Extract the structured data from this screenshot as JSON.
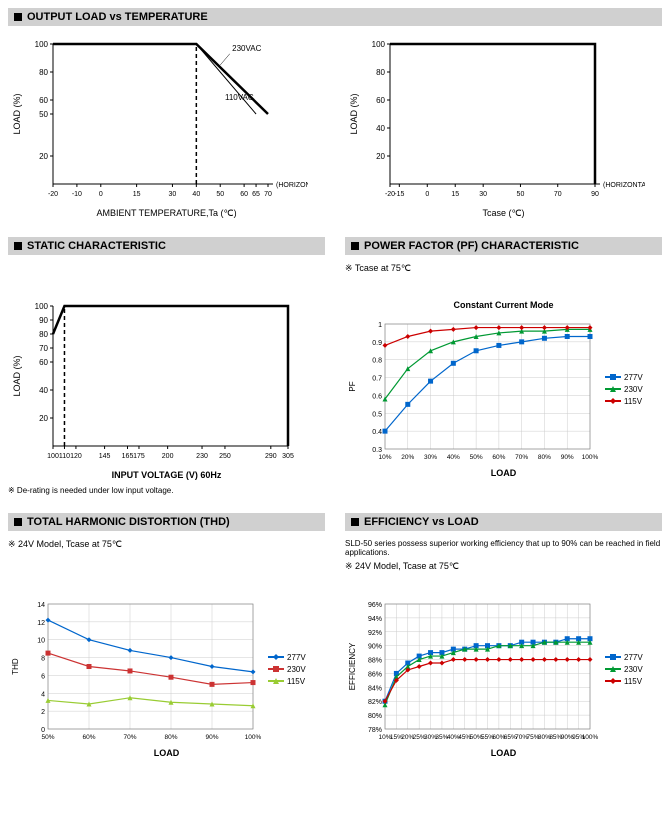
{
  "sections": {
    "output_temp": "OUTPUT LOAD vs TEMPERATURE",
    "static": "STATIC CHARACTERISTIC",
    "pf": "POWER FACTOR (PF) CHARACTERISTIC",
    "thd": "TOTAL HARMONIC DISTORTION (THD)",
    "eff": "EFFICIENCY vs LOAD"
  },
  "chart1": {
    "ylabel": "LOAD (%)",
    "xlabel": "AMBIENT TEMPERATURE,Ta (℃)",
    "xticks": [
      "-20",
      "-10",
      "0",
      "15",
      "30",
      "40",
      "50",
      "60",
      "65",
      "70"
    ],
    "yticks": [
      "20",
      "50",
      "60",
      "80",
      "100"
    ],
    "horizontal": "(HORIZONTAL)",
    "labels": [
      "230VAC",
      "110VAC"
    ],
    "colors": {
      "line": "#000",
      "grid": "#e0e0e0"
    },
    "line230": [
      [
        -20,
        100
      ],
      [
        40,
        100
      ],
      [
        70,
        50
      ]
    ],
    "line110": [
      [
        -20,
        100
      ],
      [
        40,
        100
      ],
      [
        65,
        50
      ]
    ],
    "dash": [
      [
        40,
        0
      ],
      [
        40,
        100
      ]
    ]
  },
  "chart2": {
    "ylabel": "LOAD (%)",
    "xlabel": "Tcase (℃)",
    "xticks": [
      "-20",
      "-15",
      "0",
      "15",
      "30",
      "50",
      "70",
      "90"
    ],
    "yticks": [
      "20",
      "40",
      "60",
      "80",
      "100"
    ],
    "horizontal": "(HORIZONTAL)",
    "line": [
      [
        -20,
        100
      ],
      [
        90,
        100
      ],
      [
        90,
        0
      ]
    ]
  },
  "chart3": {
    "ylabel": "LOAD (%)",
    "xlabel": "INPUT VOLTAGE (V) 60Hz",
    "note": "※ De-rating is needed under low input voltage.",
    "xticks": [
      "100",
      "110",
      "120",
      "145",
      "165",
      "175",
      "200",
      "230",
      "250",
      "290",
      "305"
    ],
    "yticks": [
      "20",
      "40",
      "60",
      "70",
      "80",
      "90",
      "100"
    ],
    "line": [
      [
        100,
        80
      ],
      [
        110,
        100
      ],
      [
        305,
        100
      ]
    ],
    "dash": [
      [
        110,
        0
      ],
      [
        110,
        100
      ]
    ]
  },
  "chart4": {
    "subtitle": "※ Tcase at 75℃",
    "title": "Constant Current Mode",
    "ylabel": "PF",
    "xlabel": "LOAD",
    "xticks": [
      "10%",
      "20%",
      "30%",
      "40%",
      "50%",
      "60%",
      "70%",
      "80%",
      "90%",
      "100%"
    ],
    "yticks": [
      "0.3",
      "0.4",
      "0.5",
      "0.6",
      "0.7",
      "0.8",
      "0.9",
      "1"
    ],
    "series": [
      {
        "name": "277V",
        "color": "#0066cc",
        "marker": "square",
        "data": [
          0.4,
          0.55,
          0.68,
          0.78,
          0.85,
          0.88,
          0.9,
          0.92,
          0.93,
          0.93
        ]
      },
      {
        "name": "230V",
        "color": "#009933",
        "marker": "triangle",
        "data": [
          0.58,
          0.75,
          0.85,
          0.9,
          0.93,
          0.95,
          0.96,
          0.96,
          0.97,
          0.97
        ]
      },
      {
        "name": "115V",
        "color": "#cc0000",
        "marker": "diamond",
        "data": [
          0.88,
          0.93,
          0.96,
          0.97,
          0.98,
          0.98,
          0.98,
          0.98,
          0.98,
          0.98
        ]
      }
    ]
  },
  "chart5": {
    "subtitle": "※ 24V Model, Tcase at 75℃",
    "ylabel": "THD",
    "xlabel": "LOAD",
    "xticks": [
      "50%",
      "60%",
      "70%",
      "80%",
      "90%",
      "100%"
    ],
    "yticks": [
      "0",
      "2",
      "4",
      "6",
      "8",
      "10",
      "12",
      "14"
    ],
    "series": [
      {
        "name": "277V",
        "color": "#0066cc",
        "marker": "diamond",
        "data": [
          12.2,
          10,
          8.8,
          8,
          7,
          6.4
        ]
      },
      {
        "name": "230V",
        "color": "#cc3333",
        "marker": "square",
        "data": [
          8.5,
          7,
          6.5,
          5.8,
          5,
          5.2
        ]
      },
      {
        "name": "115V",
        "color": "#99cc33",
        "marker": "triangle",
        "data": [
          3.2,
          2.8,
          3.5,
          3,
          2.8,
          2.6
        ]
      }
    ]
  },
  "chart6": {
    "desc": "SLD-50 series possess superior working efficiency that up to 90% can be reached in field applications.",
    "subtitle": "※ 24V Model, Tcase at 75℃",
    "ylabel": "EFFICIENCY",
    "xlabel": "LOAD",
    "xticks": [
      "10%",
      "15%",
      "20%",
      "25%",
      "30%",
      "35%",
      "40%",
      "45%",
      "50%",
      "55%",
      "60%",
      "65%",
      "70%",
      "75%",
      "80%",
      "85%",
      "90%",
      "95%",
      "100%"
    ],
    "yticks": [
      "78%",
      "80%",
      "82%",
      "84%",
      "86%",
      "88%",
      "90%",
      "92%",
      "94%",
      "96%"
    ],
    "series": [
      {
        "name": "277V",
        "color": "#0066cc",
        "marker": "square",
        "data": [
          82,
          86,
          87.5,
          88.5,
          89,
          89,
          89.5,
          89.5,
          90,
          90,
          90,
          90,
          90.5,
          90.5,
          90.5,
          90.5,
          91,
          91,
          91
        ]
      },
      {
        "name": "230V",
        "color": "#009933",
        "marker": "triangle",
        "data": [
          81.5,
          85.5,
          87,
          88,
          88.5,
          88.5,
          89,
          89.5,
          89.5,
          89.5,
          90,
          90,
          90,
          90,
          90.5,
          90.5,
          90.5,
          90.5,
          90.5
        ]
      },
      {
        "name": "115V",
        "color": "#cc0000",
        "marker": "diamond",
        "data": [
          82,
          85,
          86.5,
          87,
          87.5,
          87.5,
          88,
          88,
          88,
          88,
          88,
          88,
          88,
          88,
          88,
          88,
          88,
          88,
          88
        ]
      }
    ]
  }
}
